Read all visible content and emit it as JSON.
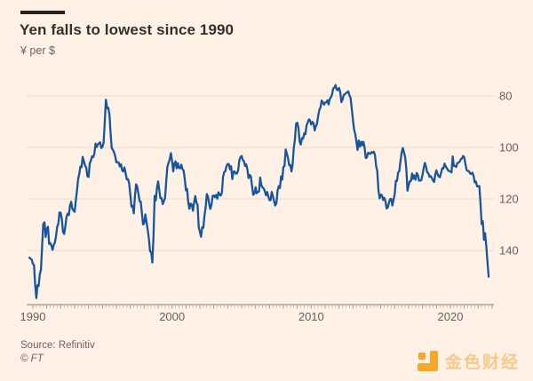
{
  "footer": {
    "source": "Source: Refinitiv",
    "copyright": "© FT"
  },
  "watermark": {
    "text": "金色财经",
    "icon": "jinse-logo-icon",
    "icon_color": "#F7A21B"
  },
  "chart_data": {
    "type": "line",
    "title": "Yen falls to lowest since 1990",
    "ylabel": "¥ per $",
    "colors": {
      "background": "#FFF1E5",
      "line": "#17559D",
      "grid": "#EAD9C8",
      "axis": "#8A7F73",
      "tick_minor": "#C9B9A9",
      "tick_year": "#A3958A",
      "label": "#66605B"
    },
    "y_axis": {
      "ticks": [
        80,
        100,
        120,
        140
      ],
      "inverted": true,
      "side": "right",
      "grid": true
    },
    "x_axis": {
      "ticks": [
        1990,
        2000,
        2010,
        2020
      ],
      "range": [
        1989.75,
        2023.0
      ],
      "minor_tick_interval_years": 0.25
    },
    "series": [
      {
        "name": "Yen per US dollar",
        "frequency": "monthly",
        "start": {
          "year": 1989,
          "month": 10
        },
        "end": {
          "year": 2022,
          "month": 10
        },
        "values": [
          142.8,
          143.2,
          143.6,
          145.1,
          145.7,
          153.3,
          158.5,
          153.5,
          153.8,
          149.2,
          147.5,
          138.4,
          129.7,
          129.1,
          134.8,
          131.5,
          130.8,
          137.4,
          137.1,
          138.2,
          139.8,
          137.8,
          136.9,
          134.3,
          130.8,
          129.6,
          125.2,
          125.4,
          127.8,
          132.8,
          133.6,
          130.6,
          126.9,
          125.7,
          126.3,
          122.6,
          121.1,
          123.8,
          124.5,
          125.0,
          120.8,
          117.0,
          112.4,
          110.3,
          107.4,
          107.7,
          103.7,
          105.3,
          107.0,
          107.8,
          111.2,
          111.5,
          106.3,
          105.1,
          103.5,
          103.8,
          102.5,
          98.5,
          99.9,
          98.8,
          98.4,
          98.0,
          100.2,
          99.8,
          98.2,
          90.5,
          81.5,
          84.8,
          84.6,
          87.2,
          94.6,
          100.3,
          100.9,
          101.9,
          103.4,
          105.8,
          105.7,
          105.9,
          107.4,
          106.5,
          108.9,
          109.3,
          107.8,
          109.9,
          112.4,
          112.3,
          114.0,
          118.2,
          123.0,
          122.7,
          125.6,
          119.0,
          114.3,
          115.3,
          117.9,
          120.9,
          121.0,
          125.3,
          129.9,
          129.5,
          126.0,
          128.8,
          131.8,
          135.1,
          140.3,
          140.7,
          144.7,
          134.5,
          118.8,
          120.6,
          115.6,
          113.2,
          116.6,
          119.7,
          119.7,
          122.0,
          120.8,
          119.7,
          113.3,
          107.5,
          106.0,
          104.7,
          102.2,
          105.3,
          109.3,
          106.3,
          105.4,
          108.1,
          106.1,
          108.0,
          108.1,
          106.7,
          108.4,
          109.0,
          112.2,
          116.7,
          116.1,
          121.2,
          123.8,
          121.8,
          122.2,
          124.6,
          121.5,
          118.9,
          121.3,
          122.3,
          131.0,
          132.7,
          134.7,
          131.0,
          131.2,
          126.4,
          123.3,
          118.1,
          119.0,
          121.8,
          123.9,
          122.4,
          118.8,
          118.7,
          119.3,
          118.5,
          119.9,
          117.4,
          118.3,
          118.7,
          117.6,
          111.4,
          109.6,
          109.2,
          107.2,
          106.4,
          106.5,
          108.5,
          107.3,
          112.3,
          109.4,
          109.3,
          110.2,
          110.1,
          108.9,
          104.9,
          103.8,
          103.3,
          104.9,
          105.3,
          107.2,
          106.6,
          108.6,
          111.9,
          110.7,
          111.2,
          114.9,
          118.4,
          117.9,
          115.5,
          117.8,
          117.3,
          117.1,
          111.7,
          114.6,
          115.6,
          115.9,
          117.0,
          118.6,
          117.3,
          119.0,
          120.5,
          120.5,
          117.3,
          118.9,
          120.8,
          122.6,
          121.6,
          116.7,
          115.0,
          115.8,
          111.2,
          112.5,
          107.6,
          107.2,
          100.8,
          102.4,
          104.1,
          106.9,
          106.8,
          109.3,
          106.7,
          100.2,
          96.9,
          90.8,
          90.4,
          92.5,
          97.8,
          98.9,
          96.4,
          96.6,
          94.5,
          94.9,
          91.4,
          90.3,
          89.1,
          89.5,
          91.1,
          90.1,
          90.6,
          93.4,
          91.8,
          90.9,
          87.7,
          85.4,
          84.4,
          81.8,
          82.4,
          83.4,
          82.6,
          82.5,
          81.7,
          83.3,
          81.2,
          80.5,
          79.4,
          77.1,
          76.8,
          75.8,
          77.5,
          77.8,
          76.9,
          78.5,
          82.4,
          81.4,
          79.7,
          79.3,
          78.9,
          78.7,
          78.2,
          79.8,
          80.9,
          85.0,
          89.2,
          93.1,
          94.8,
          97.8,
          101.0,
          97.3,
          99.7,
          97.8,
          99.2,
          97.8,
          100.0,
          104.1,
          103.9,
          102.1,
          102.3,
          102.5,
          101.8,
          102.1,
          101.7,
          102.9,
          107.2,
          109.2,
          116.4,
          119.8,
          118.3,
          118.6,
          120.4,
          119.6,
          120.8,
          123.7,
          123.3,
          121.4,
          120.1,
          120.0,
          122.6,
          120.3,
          118.2,
          113.0,
          113.0,
          109.7,
          109.2,
          105.4,
          102.1,
          100.2,
          102.0,
          103.8,
          108.3,
          116.8,
          114.7,
          113.1,
          113.0,
          110.1,
          112.2,
          110.9,
          112.5,
          109.9,
          110.7,
          112.9,
          112.9,
          112.7,
          110.7,
          107.9,
          106.0,
          107.5,
          109.7,
          110.0,
          111.4,
          111.1,
          111.9,
          112.8,
          113.4,
          110.4,
          108.9,
          110.4,
          111.2,
          111.6,
          109.9,
          108.1,
          108.2,
          106.3,
          107.4,
          108.1,
          108.9,
          109.2,
          109.3,
          109.7,
          103.5,
          107.2,
          107.2,
          107.6,
          106.1,
          105.9,
          105.6,
          104.6,
          104.3,
          103.3,
          103.8,
          106.6,
          108.8,
          109.1,
          109.2,
          110.1,
          110.3,
          109.8,
          111.0,
          113.6,
          113.2,
          115.1,
          115.1,
          115.0,
          121.7,
          129.8,
          128.7,
          135.9,
          133.3,
          138.7,
          144.7,
          150.2
        ]
      }
    ]
  }
}
